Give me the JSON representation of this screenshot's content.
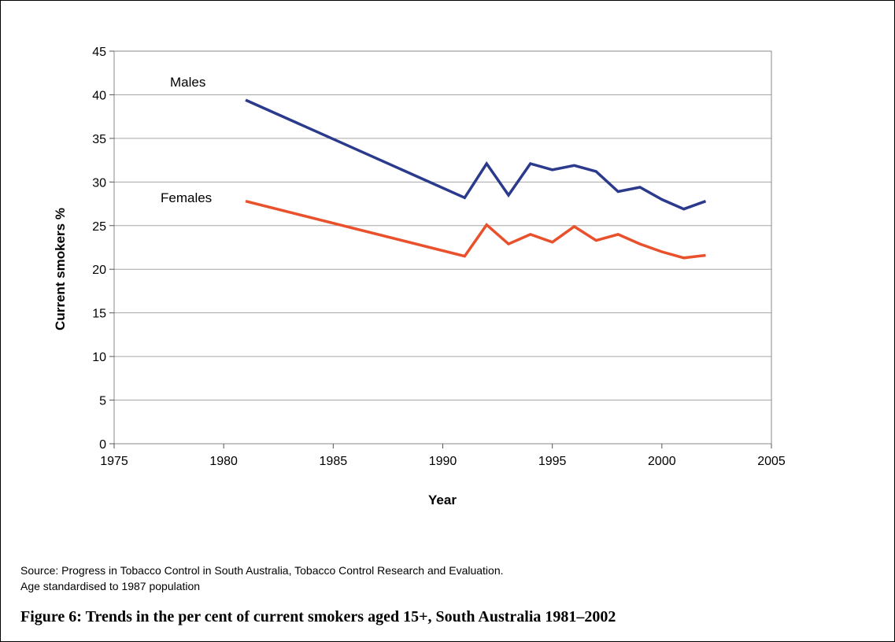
{
  "chart_data": {
    "type": "line",
    "xlabel": "Year",
    "ylabel": "Current smokers %",
    "xlim": [
      1975,
      2005
    ],
    "ylim": [
      0,
      45
    ],
    "xticks": [
      1975,
      1980,
      1985,
      1990,
      1995,
      2000,
      2005
    ],
    "yticks": [
      0,
      5,
      10,
      15,
      20,
      25,
      30,
      35,
      40,
      45
    ],
    "grid": "horizontal",
    "legend": "inline labels near series start",
    "series": [
      {
        "name": "Males",
        "color": "#2b3a8c",
        "x": [
          1981,
          1991,
          1992,
          1993,
          1994,
          1995,
          1996,
          1997,
          1998,
          1999,
          2000,
          2001,
          2002
        ],
        "y": [
          39.4,
          28.2,
          32.1,
          28.5,
          32.1,
          31.4,
          31.9,
          31.2,
          28.9,
          29.4,
          28.0,
          26.9,
          27.8
        ]
      },
      {
        "name": "Females",
        "color": "#e8512b",
        "x": [
          1981,
          1991,
          1992,
          1993,
          1994,
          1995,
          1996,
          1997,
          1998,
          1999,
          2000,
          2001,
          2002
        ],
        "y": [
          27.8,
          21.5,
          25.1,
          22.9,
          24.0,
          23.1,
          24.9,
          23.3,
          24.0,
          22.9,
          22.0,
          21.3,
          21.6
        ]
      }
    ]
  },
  "notes": {
    "source": "Source: Progress in Tobacco Control in South Australia, Tobacco Control Research and Evaluation.",
    "age_std": "Age standardised to 1987 population"
  },
  "caption": "Figure 6:  Trends in the per cent of current smokers aged 15+, South Australia 1981–2002"
}
